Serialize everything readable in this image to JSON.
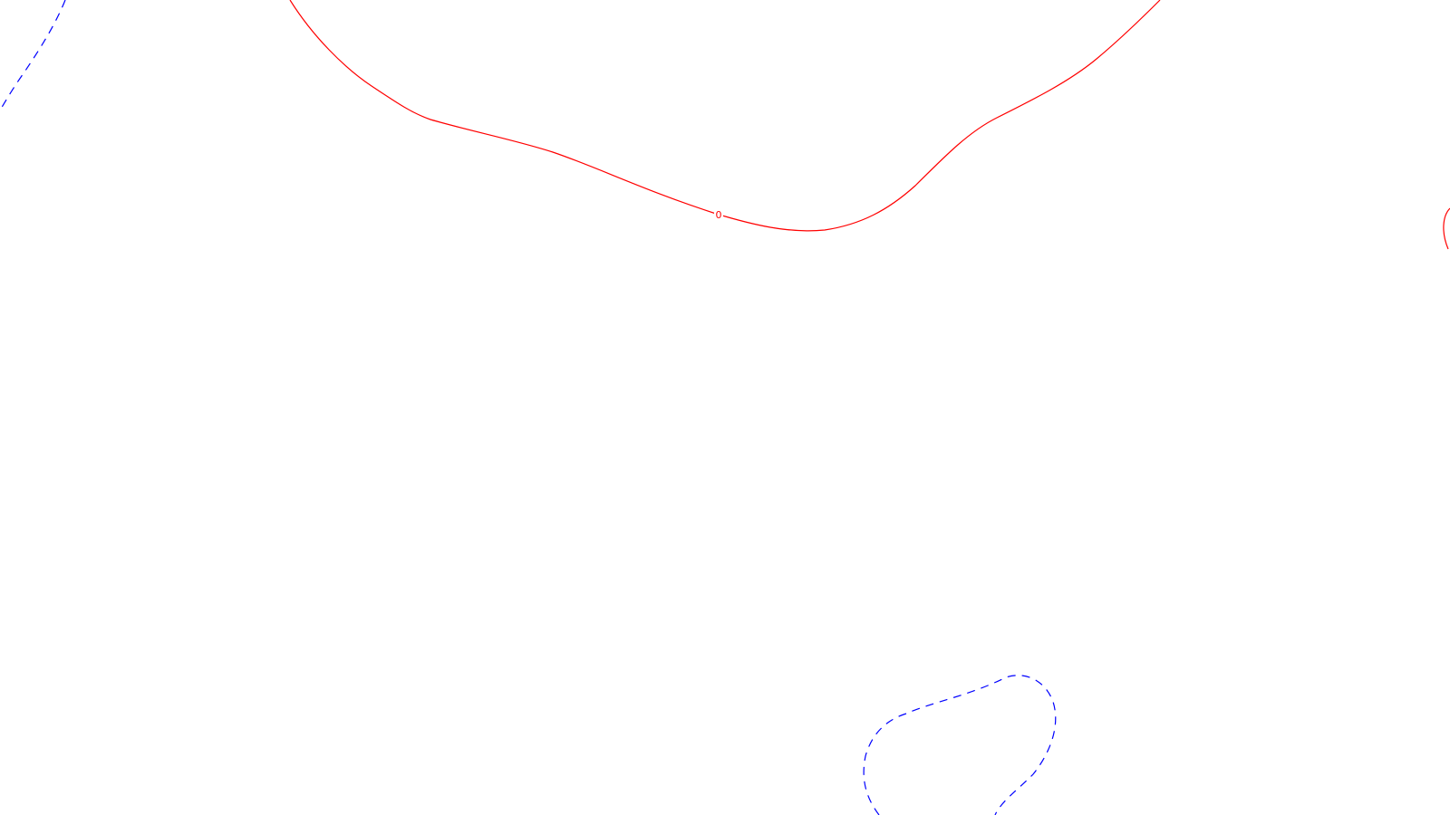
{
  "contours": [
    {
      "id": "zero-contour-main",
      "style": "solid",
      "color": "#ff0000",
      "label": "0"
    },
    {
      "id": "zero-contour-right-edge",
      "style": "solid",
      "color": "#ff0000",
      "label": ""
    },
    {
      "id": "dashed-contour-top-left",
      "style": "dashed",
      "color": "#0000ff",
      "label": ""
    },
    {
      "id": "dashed-contour-bottom",
      "style": "dashed",
      "color": "#0000ff",
      "label": ""
    }
  ]
}
